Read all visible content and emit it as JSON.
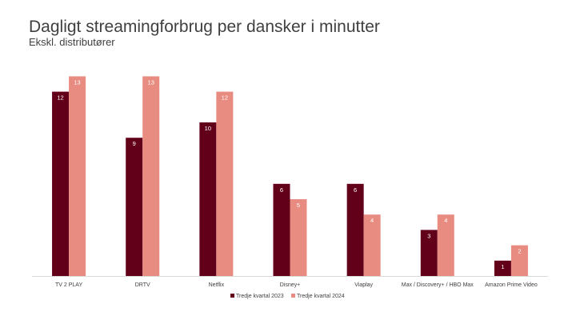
{
  "chart_data": {
    "type": "bar",
    "title": "Dagligt streamingforbrug per dansker i minutter",
    "subtitle": "Ekskl. distributører",
    "categories": [
      "TV 2 PLAY",
      "DRTV",
      "Netflix",
      "Disney+",
      "Viaplay",
      "Max / Discovery+ / HBO Max",
      "Amazon Prime Video"
    ],
    "series": [
      {
        "name": "Tredje kvartal 2023",
        "values": [
          12,
          9,
          10,
          6,
          6,
          3,
          1
        ],
        "labels": [
          "12",
          "9",
          "10",
          "6",
          "6",
          "3",
          "1"
        ],
        "color": "#62001A"
      },
      {
        "name": "Tredje kvartal 2024",
        "values": [
          13,
          13,
          12,
          5,
          4,
          4,
          2
        ],
        "labels": [
          "13",
          "13",
          "12",
          "5",
          "4",
          "4",
          "2"
        ],
        "color": "#E88C82"
      }
    ],
    "ylim": [
      0,
      13.5
    ],
    "grid": false,
    "legend_position": "bottom-center"
  }
}
